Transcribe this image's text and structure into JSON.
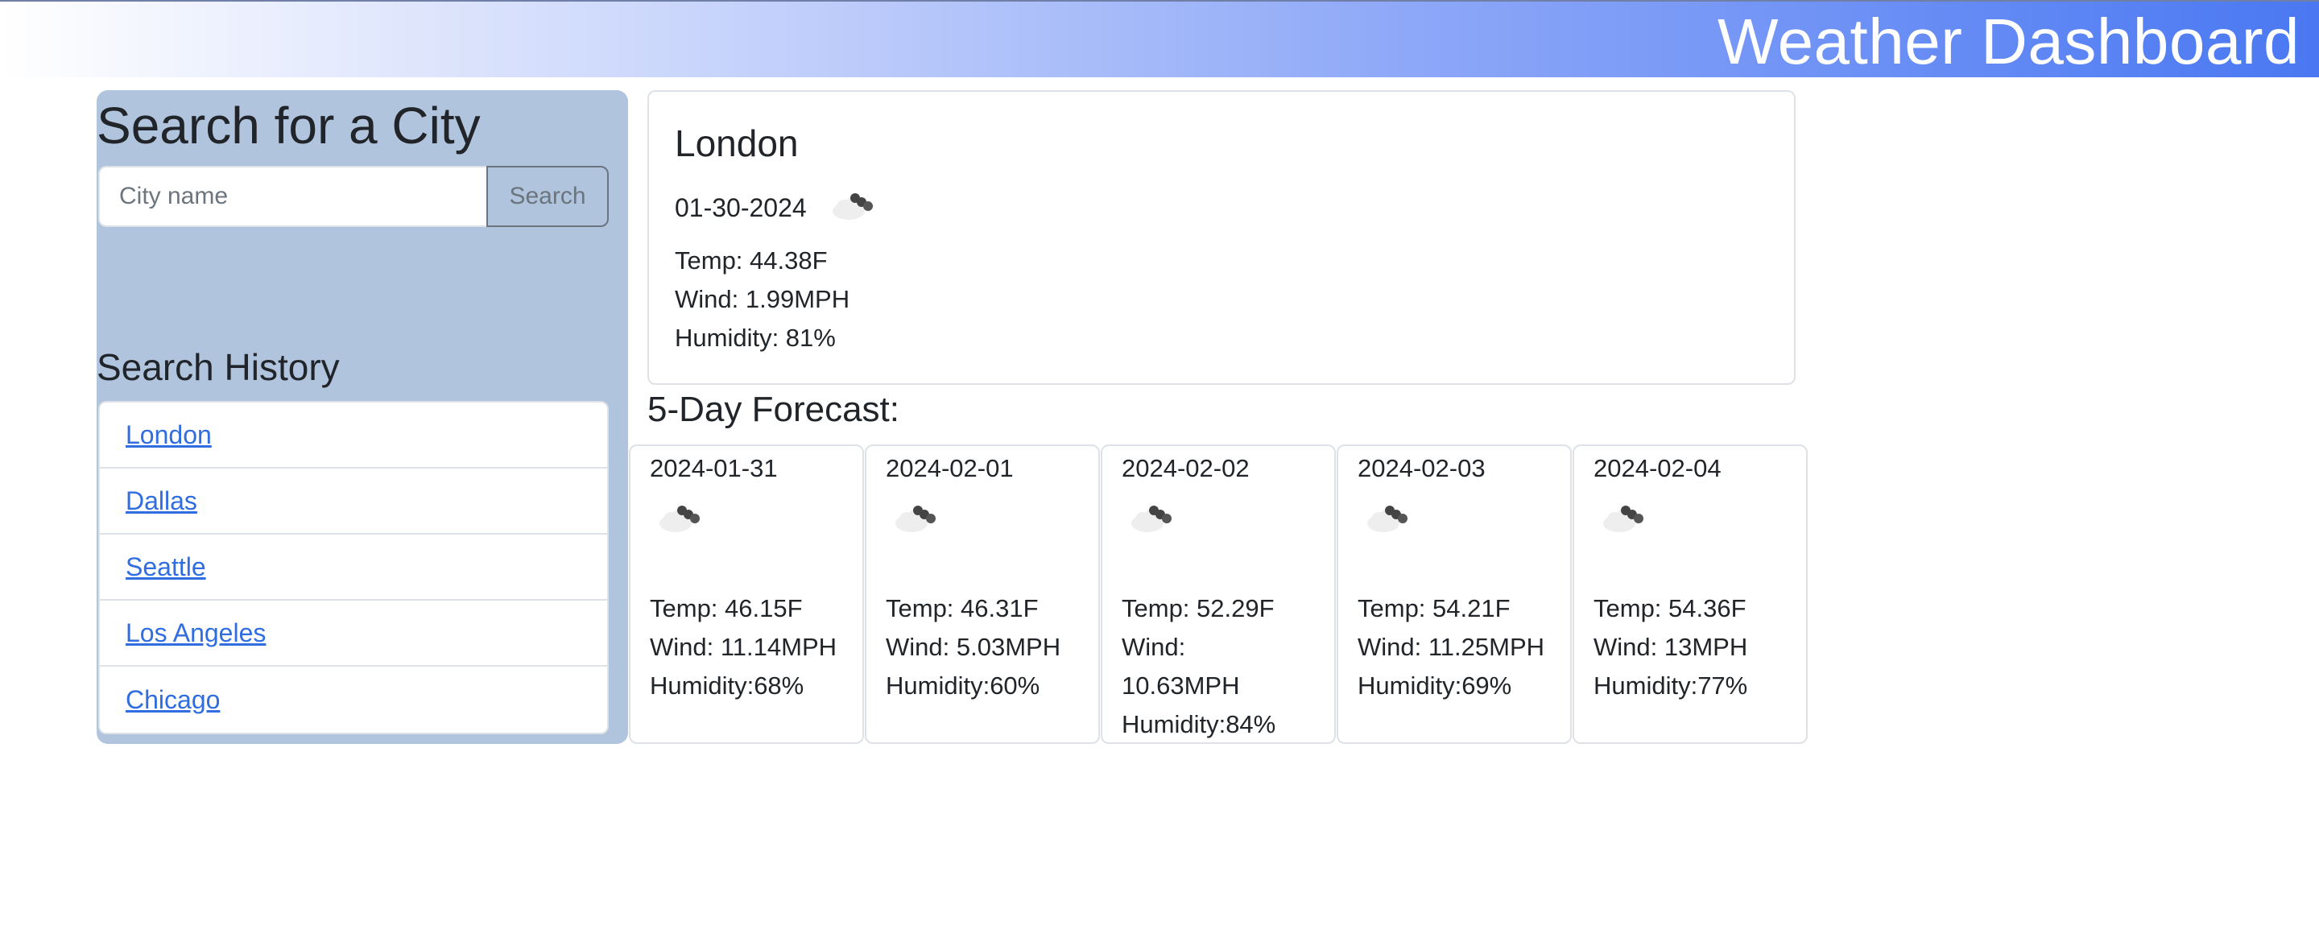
{
  "header": {
    "title": "Weather Dashboard"
  },
  "sidebar": {
    "heading": "Search for a City",
    "search": {
      "placeholder": "City name",
      "value": "",
      "button_label": "Search"
    },
    "history_heading": "Search History",
    "history": [
      "London",
      "Dallas",
      "Seattle",
      "Los Angeles",
      "Chicago"
    ]
  },
  "current": {
    "city": "London",
    "date": "01-30-2024",
    "icon": "broken-clouds-icon",
    "temp": "Temp: 44.38F",
    "wind": "Wind: 1.99MPH",
    "humidity": "Humidity: 81%"
  },
  "forecast": {
    "heading": "5-Day Forecast:",
    "days": [
      {
        "date": "2024-01-31",
        "icon": "broken-clouds-icon",
        "temp": "Temp: 46.15F",
        "wind": "Wind: 11.14MPH",
        "humidity": "Humidity:68%"
      },
      {
        "date": "2024-02-01",
        "icon": "broken-clouds-icon",
        "temp": "Temp: 46.31F",
        "wind": "Wind: 5.03MPH",
        "humidity": "Humidity:60%"
      },
      {
        "date": "2024-02-02",
        "icon": "broken-clouds-icon",
        "temp": "Temp: 52.29F",
        "wind": "Wind: 10.63MPH",
        "humidity": "Humidity:84%"
      },
      {
        "date": "2024-02-03",
        "icon": "broken-clouds-icon",
        "temp": "Temp: 54.21F",
        "wind": "Wind: 11.25MPH",
        "humidity": "Humidity:69%"
      },
      {
        "date": "2024-02-04",
        "icon": "broken-clouds-icon",
        "temp": "Temp: 54.36F",
        "wind": "Wind: 13MPH",
        "humidity": "Humidity:77%"
      }
    ]
  },
  "colors": {
    "sidebar_bg": "#b0c4de",
    "link": "#2f6de0",
    "header_gradient_end": "#4a78f2"
  }
}
